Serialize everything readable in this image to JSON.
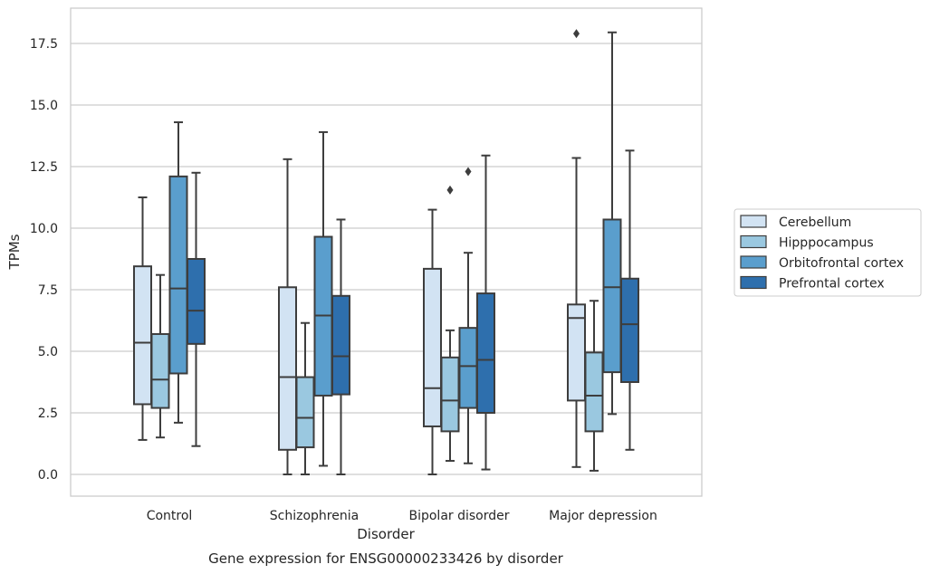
{
  "chart_data": {
    "type": "box",
    "title": "Gene expression for ENSG00000233426 by disorder",
    "xlabel": "Disorder",
    "ylabel": "TPMs",
    "ylim": [
      -0.85,
      18.9
    ],
    "yticks": [
      "0.0",
      "2.5",
      "5.0",
      "7.5",
      "10.0",
      "12.5",
      "15.0",
      "17.5"
    ],
    "ytick_values": [
      0,
      2.5,
      5,
      7.5,
      10,
      12.5,
      15,
      17.5
    ],
    "grid": "horizontal",
    "legend_position": "right",
    "categories": [
      "Control",
      "Schizophrenia",
      "Bipolar disorder",
      "Major depression"
    ],
    "series": [
      {
        "name": "Cerebellum",
        "color": "#d2e3f3",
        "boxes": [
          {
            "whisker_low": 1.4,
            "q1": 2.85,
            "median": 5.35,
            "q3": 8.45,
            "whisker_high": 11.25,
            "outliers": []
          },
          {
            "whisker_low": 0.0,
            "q1": 1.0,
            "median": 3.95,
            "q3": 7.6,
            "whisker_high": 12.8,
            "outliers": []
          },
          {
            "whisker_low": 0.0,
            "q1": 1.95,
            "median": 3.5,
            "q3": 8.35,
            "whisker_high": 10.75,
            "outliers": []
          },
          {
            "whisker_low": 0.3,
            "q1": 3.0,
            "median": 6.35,
            "q3": 6.9,
            "whisker_high": 12.85,
            "outliers": [
              17.9
            ]
          }
        ]
      },
      {
        "name": "Hipppocampus",
        "color": "#9ac8e0",
        "boxes": [
          {
            "whisker_low": 1.5,
            "q1": 2.7,
            "median": 3.85,
            "q3": 5.7,
            "whisker_high": 8.1,
            "outliers": []
          },
          {
            "whisker_low": 0.0,
            "q1": 1.1,
            "median": 2.3,
            "q3": 3.95,
            "whisker_high": 6.15,
            "outliers": []
          },
          {
            "whisker_low": 0.55,
            "q1": 1.75,
            "median": 3.0,
            "q3": 4.75,
            "whisker_high": 5.85,
            "outliers": [
              11.55
            ]
          },
          {
            "whisker_low": 0.15,
            "q1": 1.75,
            "median": 3.2,
            "q3": 4.95,
            "whisker_high": 7.05,
            "outliers": []
          }
        ]
      },
      {
        "name": "Orbitofrontal cortex",
        "color": "#5a9ecd",
        "boxes": [
          {
            "whisker_low": 2.1,
            "q1": 4.1,
            "median": 7.55,
            "q3": 12.1,
            "whisker_high": 14.3,
            "outliers": []
          },
          {
            "whisker_low": 0.35,
            "q1": 3.2,
            "median": 6.45,
            "q3": 9.65,
            "whisker_high": 13.9,
            "outliers": []
          },
          {
            "whisker_low": 0.45,
            "q1": 2.7,
            "median": 4.4,
            "q3": 5.95,
            "whisker_high": 9.0,
            "outliers": [
              12.3
            ]
          },
          {
            "whisker_low": 2.45,
            "q1": 4.15,
            "median": 7.6,
            "q3": 10.35,
            "whisker_high": 17.95,
            "outliers": []
          }
        ]
      },
      {
        "name": "Prefrontal cortex",
        "color": "#2e6fad",
        "boxes": [
          {
            "whisker_low": 1.15,
            "q1": 5.3,
            "median": 6.65,
            "q3": 8.75,
            "whisker_high": 12.25,
            "outliers": []
          },
          {
            "whisker_low": 0.0,
            "q1": 3.25,
            "median": 4.8,
            "q3": 7.25,
            "whisker_high": 10.35,
            "outliers": []
          },
          {
            "whisker_low": 0.2,
            "q1": 2.5,
            "median": 4.65,
            "q3": 7.35,
            "whisker_high": 12.95,
            "outliers": []
          },
          {
            "whisker_low": 1.0,
            "q1": 3.75,
            "median": 6.1,
            "q3": 7.95,
            "whisker_high": 13.15,
            "outliers": []
          }
        ]
      }
    ]
  }
}
